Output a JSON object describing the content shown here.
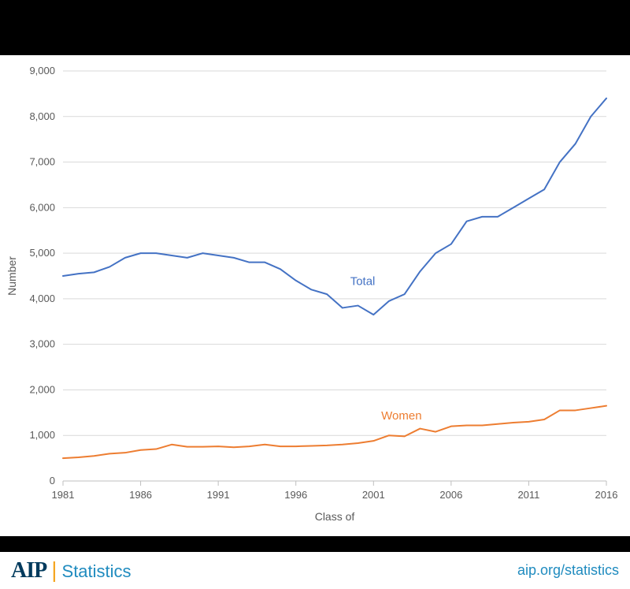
{
  "chart": {
    "type": "line",
    "background_color": "#ffffff",
    "grid_color": "#d9d9d9",
    "grid_width": 1,
    "axis_line_color": "#bfbfbf",
    "tick_label_color": "#595959",
    "tick_label_fontsize": 13,
    "axis_label_fontsize": 14,
    "x_label": "Class of",
    "y_label": "Number",
    "xlim": [
      1981,
      2016
    ],
    "ylim": [
      0,
      9000
    ],
    "x_ticks": [
      1981,
      1986,
      1991,
      1996,
      2001,
      2006,
      2011,
      2016
    ],
    "y_ticks": [
      0,
      1000,
      2000,
      3000,
      4000,
      5000,
      6000,
      7000,
      8000,
      9000
    ],
    "y_tick_labels": [
      "0",
      "1,000",
      "2,000",
      "3,000",
      "4,000",
      "5,000",
      "6,000",
      "7,000",
      "8,000",
      "9,000"
    ],
    "line_width": 2,
    "series": [
      {
        "name": "Total",
        "color": "#4472c4",
        "label_x": 1999.5,
        "label_y": 4300,
        "data": [
          [
            1981,
            4500
          ],
          [
            1982,
            4550
          ],
          [
            1983,
            4580
          ],
          [
            1984,
            4700
          ],
          [
            1985,
            4900
          ],
          [
            1986,
            5000
          ],
          [
            1987,
            5000
          ],
          [
            1988,
            4950
          ],
          [
            1989,
            4900
          ],
          [
            1990,
            5000
          ],
          [
            1991,
            4950
          ],
          [
            1992,
            4900
          ],
          [
            1993,
            4800
          ],
          [
            1994,
            4800
          ],
          [
            1995,
            4650
          ],
          [
            1996,
            4400
          ],
          [
            1997,
            4200
          ],
          [
            1998,
            4100
          ],
          [
            1999,
            3800
          ],
          [
            2000,
            3850
          ],
          [
            2001,
            3650
          ],
          [
            2002,
            3950
          ],
          [
            2003,
            4100
          ],
          [
            2004,
            4600
          ],
          [
            2005,
            5000
          ],
          [
            2006,
            5200
          ],
          [
            2007,
            5700
          ],
          [
            2008,
            5800
          ],
          [
            2009,
            5800
          ],
          [
            2010,
            6000
          ],
          [
            2011,
            6200
          ],
          [
            2012,
            6400
          ],
          [
            2013,
            7000
          ],
          [
            2014,
            7400
          ],
          [
            2015,
            8000
          ],
          [
            2016,
            8400
          ]
        ]
      },
      {
        "name": "Women",
        "color": "#ed7d31",
        "label_x": 2001.5,
        "label_y": 1350,
        "data": [
          [
            1981,
            500
          ],
          [
            1982,
            520
          ],
          [
            1983,
            550
          ],
          [
            1984,
            600
          ],
          [
            1985,
            620
          ],
          [
            1986,
            680
          ],
          [
            1987,
            700
          ],
          [
            1988,
            800
          ],
          [
            1989,
            750
          ],
          [
            1990,
            750
          ],
          [
            1991,
            760
          ],
          [
            1992,
            740
          ],
          [
            1993,
            760
          ],
          [
            1994,
            800
          ],
          [
            1995,
            760
          ],
          [
            1996,
            760
          ],
          [
            1997,
            770
          ],
          [
            1998,
            780
          ],
          [
            1999,
            800
          ],
          [
            2000,
            830
          ],
          [
            2001,
            880
          ],
          [
            2002,
            1000
          ],
          [
            2003,
            980
          ],
          [
            2004,
            1150
          ],
          [
            2005,
            1080
          ],
          [
            2006,
            1200
          ],
          [
            2007,
            1220
          ],
          [
            2008,
            1220
          ],
          [
            2009,
            1250
          ],
          [
            2010,
            1280
          ],
          [
            2011,
            1300
          ],
          [
            2012,
            1350
          ],
          [
            2013,
            1550
          ],
          [
            2014,
            1550
          ],
          [
            2015,
            1600
          ],
          [
            2016,
            1650
          ]
        ]
      }
    ]
  },
  "footer": {
    "logo_text_1": "AIP",
    "logo_pipe": "|",
    "logo_text_2": "Statistics",
    "logo_color_1": "#003a5d",
    "logo_color_2": "#1f8bbf",
    "logo_fontsize_1": 28,
    "logo_fontsize_2": 22,
    "link_text": "aip.org/statistics",
    "link_color": "#1f8bbf",
    "link_fontsize": 18
  }
}
